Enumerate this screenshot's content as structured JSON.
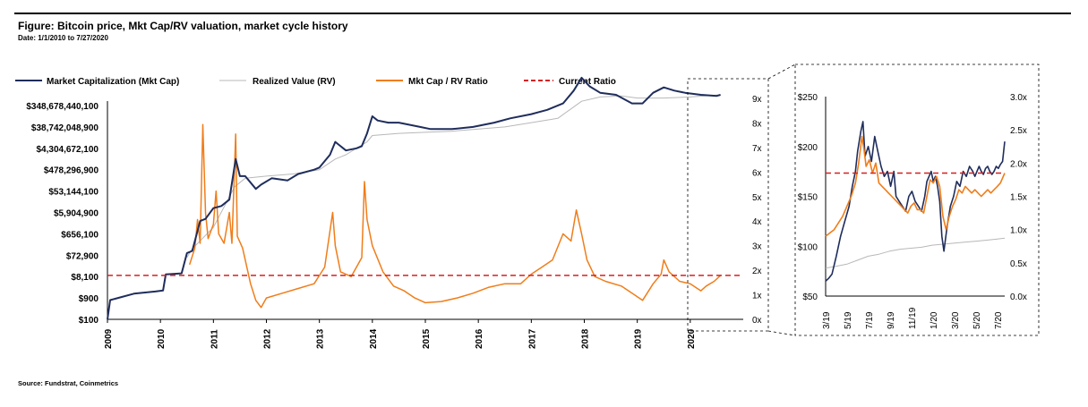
{
  "header": {
    "title": "Figure: Bitcoin price, Mkt Cap/RV valuation, market cycle history",
    "date_range": "Date: 1/1/2010 to 7/27/2020"
  },
  "footer": {
    "source": "Source: Fundstrat, Coinmetrics"
  },
  "colors": {
    "mkt_cap": "#1f2d5c",
    "realized": "#b8b8b8",
    "ratio": "#f07d1a",
    "current": "#d62020"
  },
  "chart_data": [
    {
      "type": "line",
      "legend": [
        {
          "name": "Market Capitalization (Mkt Cap)",
          "style": "solid-navy"
        },
        {
          "name": "Realized Value (RV)",
          "style": "solid-grey"
        },
        {
          "name": "Mkt Cap / RV Ratio",
          "style": "solid-orange"
        },
        {
          "name": "Current Ratio",
          "style": "dashed-red"
        }
      ],
      "legend_position": "top-left",
      "x_ticks": [
        "2009",
        "2010",
        "2011",
        "2012",
        "2013",
        "2014",
        "2015",
        "2016",
        "2017",
        "2018",
        "2019",
        "2020"
      ],
      "left_ticks": [
        "$348,678,440,100",
        "$38,742,048,900",
        "$4,304,672,100",
        "$478,296,900",
        "$53,144,100",
        "$5,904,900",
        "$656,100",
        "$72,900",
        "$8,100",
        "$900",
        "$100"
      ],
      "left_scale": "log",
      "right_ticks": [
        "9x",
        "8x",
        "7x",
        "6x",
        "5x",
        "4x",
        "3x",
        "2x",
        "1x",
        "0x"
      ],
      "ylim_right": [
        0,
        9
      ],
      "current_ratio": 1.85,
      "series": [
        {
          "name": "Market Capitalization (Mkt Cap)",
          "x": [
            2009.0,
            2009.05,
            2009.2,
            2009.5,
            2009.9,
            2010.05,
            2010.1,
            2010.4,
            2010.5,
            2010.6,
            2010.75,
            2010.85,
            2011.0,
            2011.15,
            2011.3,
            2011.42,
            2011.5,
            2011.6,
            2011.8,
            2011.9,
            2012.1,
            2012.4,
            2012.6,
            2012.9,
            2013.0,
            2013.2,
            2013.3,
            2013.5,
            2013.7,
            2013.8,
            2013.9,
            2014.0,
            2014.1,
            2014.3,
            2014.5,
            2014.7,
            2014.9,
            2015.1,
            2015.5,
            2015.9,
            2016.3,
            2016.6,
            2017.0,
            2017.3,
            2017.6,
            2017.8,
            2017.95,
            2018.1,
            2018.3,
            2018.6,
            2018.9,
            2019.1,
            2019.3,
            2019.5,
            2019.7,
            2019.9,
            2020.2,
            2020.5,
            2020.57
          ],
          "y": [
            2.0,
            2.9,
            3.0,
            3.2,
            3.3,
            3.35,
            4.1,
            4.15,
            5.1,
            5.2,
            6.6,
            6.7,
            7.2,
            7.3,
            7.6,
            9.5,
            8.7,
            8.7,
            8.1,
            8.3,
            8.6,
            8.5,
            8.8,
            9.0,
            9.1,
            9.7,
            10.3,
            9.9,
            10.0,
            10.1,
            10.7,
            11.5,
            11.3,
            11.2,
            11.2,
            11.1,
            11.0,
            10.9,
            10.9,
            11.0,
            11.2,
            11.4,
            11.6,
            11.8,
            12.1,
            12.7,
            13.3,
            12.9,
            12.6,
            12.5,
            12.1,
            12.1,
            12.6,
            12.85,
            12.7,
            12.6,
            12.5,
            12.45,
            12.5
          ]
        },
        {
          "name": "Realized Value (RV)",
          "x": [
            2010.5,
            2010.6,
            2010.8,
            2011.0,
            2011.4,
            2011.6,
            2012.0,
            2012.5,
            2013.0,
            2013.3,
            2013.5,
            2013.9,
            2014.0,
            2014.5,
            2015.0,
            2015.5,
            2016.0,
            2016.5,
            2017.0,
            2017.5,
            2017.95,
            2018.3,
            2018.7,
            2019.0,
            2019.5,
            2020.0,
            2020.57
          ],
          "y": [
            4.9,
            5.3,
            5.8,
            6.3,
            8.2,
            8.6,
            8.7,
            8.8,
            9.0,
            9.5,
            9.7,
            10.3,
            10.6,
            10.7,
            10.75,
            10.8,
            10.9,
            11.0,
            11.2,
            11.4,
            12.2,
            12.4,
            12.45,
            12.35,
            12.35,
            12.4,
            12.5
          ]
        },
        {
          "name": "Mkt Cap / RV Ratio",
          "x": [
            2010.55,
            2010.65,
            2010.7,
            2010.75,
            2010.8,
            2010.85,
            2010.9,
            2011.0,
            2011.05,
            2011.1,
            2011.2,
            2011.3,
            2011.35,
            2011.42,
            2011.45,
            2011.55,
            2011.7,
            2011.8,
            2011.9,
            2012.0,
            2012.3,
            2012.6,
            2012.9,
            2013.1,
            2013.25,
            2013.3,
            2013.4,
            2013.6,
            2013.8,
            2013.85,
            2013.9,
            2014.0,
            2014.2,
            2014.4,
            2014.6,
            2014.8,
            2015.0,
            2015.3,
            2015.6,
            2015.9,
            2016.2,
            2016.5,
            2016.8,
            2017.0,
            2017.2,
            2017.4,
            2017.6,
            2017.75,
            2017.85,
            2017.95,
            2018.05,
            2018.2,
            2018.4,
            2018.7,
            2018.9,
            2019.1,
            2019.3,
            2019.45,
            2019.5,
            2019.6,
            2019.8,
            2020.0,
            2020.2,
            2020.3,
            2020.45,
            2020.57
          ],
          "y": [
            2.3,
            3.0,
            4.2,
            3.2,
            8.2,
            4.5,
            3.4,
            4.0,
            5.4,
            3.6,
            3.2,
            4.5,
            3.2,
            7.8,
            3.5,
            3.0,
            1.5,
            0.8,
            0.5,
            0.9,
            1.1,
            1.3,
            1.5,
            2.2,
            4.5,
            3.1,
            2.0,
            1.8,
            2.6,
            5.8,
            4.2,
            3.1,
            2.0,
            1.4,
            1.2,
            0.9,
            0.7,
            0.75,
            0.9,
            1.1,
            1.35,
            1.5,
            1.5,
            1.9,
            2.2,
            2.5,
            3.6,
            3.3,
            4.6,
            3.6,
            2.5,
            1.8,
            1.6,
            1.4,
            1.1,
            0.8,
            1.5,
            1.9,
            2.5,
            2.0,
            1.6,
            1.5,
            1.2,
            1.4,
            1.6,
            1.85
          ]
        }
      ]
    },
    {
      "type": "line",
      "inset": true,
      "x_ticks": [
        "3/19",
        "5/19",
        "7/19",
        "9/19",
        "11/19",
        "1/20",
        "3/20",
        "5/20",
        "7/20"
      ],
      "left_ticks": [
        "$250",
        "$200",
        "$150",
        "$100",
        "$50"
      ],
      "right_ticks": [
        "3.0x",
        "2.5x",
        "2.0x",
        "1.5x",
        "1.0x",
        "0.5x",
        "0.0x"
      ],
      "ylim_left": [
        50,
        250
      ],
      "ylim_right": [
        0,
        3
      ],
      "current_ratio": 1.85,
      "series": [
        {
          "name": "Market Capitalization (Mkt Cap)",
          "x": [
            0,
            0.3,
            0.6,
            1.0,
            1.4,
            1.8,
            2.2,
            2.5,
            2.8,
            3.0,
            3.3,
            3.5,
            3.7,
            4.0,
            4.3,
            4.6,
            4.9,
            5.2,
            5.5,
            5.8,
            6.1,
            6.4,
            6.6,
            6.9,
            7.2,
            7.5,
            7.8,
            8.1,
            8.4,
            8.7,
            9.0,
            9.3,
            9.5,
            9.7,
            9.9,
            10.1,
            10.3,
            10.5,
            10.7,
            10.9,
            11.1,
            11.4,
            11.7,
            12.0,
            12.3,
            12.6,
            12.9,
            13.2,
            13.5,
            13.8,
            14.0,
            14.2,
            14.4,
            14.6,
            14.8,
            15.0,
            15.2,
            15.4,
            15.6,
            15.8,
            16.0,
            16.2,
            16.4,
            16.6,
            16.8
          ],
          "y": [
            65,
            68,
            72,
            90,
            110,
            125,
            140,
            160,
            175,
            195,
            215,
            225,
            190,
            200,
            185,
            210,
            195,
            180,
            170,
            175,
            160,
            175,
            150,
            145,
            140,
            135,
            150,
            155,
            145,
            140,
            135,
            150,
            165,
            170,
            175,
            165,
            170,
            160,
            145,
            110,
            95,
            120,
            140,
            150,
            165,
            160,
            175,
            170,
            180,
            175,
            170,
            175,
            180,
            175,
            172,
            178,
            180,
            175,
            172,
            175,
            180,
            178,
            182,
            185,
            205
          ]
        },
        {
          "name": "Realized Value (RV)",
          "x": [
            0,
            1,
            2,
            3,
            4,
            5,
            6,
            7,
            8,
            9,
            10,
            11,
            12,
            13,
            14,
            15,
            16,
            16.8
          ],
          "y": [
            78,
            80,
            82,
            86,
            90,
            92,
            95,
            97,
            98,
            99,
            101,
            102,
            103,
            104,
            105,
            106,
            107,
            108
          ]
        },
        {
          "name": "Mkt Cap / RV Ratio",
          "x": [
            0,
            0.4,
            0.8,
            1.2,
            1.6,
            2.0,
            2.4,
            2.8,
            3.1,
            3.4,
            3.6,
            3.8,
            4.1,
            4.4,
            4.7,
            5.0,
            5.3,
            5.6,
            5.9,
            6.2,
            6.5,
            6.8,
            7.1,
            7.4,
            7.7,
            8.0,
            8.3,
            8.6,
            8.9,
            9.2,
            9.5,
            9.8,
            10.1,
            10.4,
            10.7,
            11.0,
            11.3,
            11.6,
            11.9,
            12.2,
            12.5,
            12.8,
            13.1,
            13.4,
            13.7,
            14.0,
            14.3,
            14.6,
            14.9,
            15.2,
            15.5,
            15.8,
            16.1,
            16.4,
            16.8
          ],
          "y": [
            0.9,
            0.95,
            1.0,
            1.1,
            1.2,
            1.35,
            1.5,
            1.7,
            2.0,
            2.4,
            2.2,
            1.95,
            2.05,
            1.85,
            2.0,
            1.7,
            1.65,
            1.6,
            1.55,
            1.5,
            1.45,
            1.4,
            1.35,
            1.3,
            1.25,
            1.35,
            1.4,
            1.3,
            1.3,
            1.25,
            1.5,
            1.75,
            1.7,
            1.8,
            1.65,
            1.2,
            1.0,
            1.2,
            1.35,
            1.45,
            1.6,
            1.55,
            1.65,
            1.6,
            1.55,
            1.6,
            1.55,
            1.5,
            1.55,
            1.6,
            1.55,
            1.6,
            1.65,
            1.7,
            1.85
          ]
        }
      ]
    }
  ]
}
